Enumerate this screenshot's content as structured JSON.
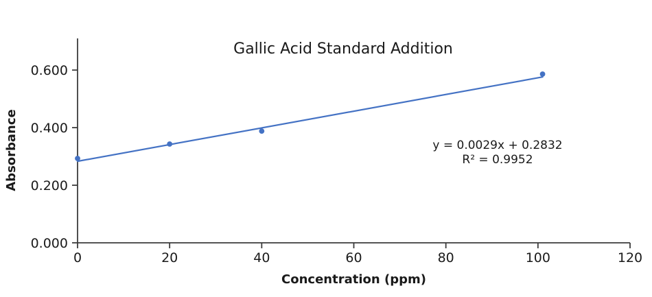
{
  "chart_data": {
    "type": "scatter",
    "title": "Gallic Acid Standard Addition",
    "xlabel": "Concentration (ppm)",
    "ylabel": "Absorbance",
    "x": [
      0,
      20,
      40,
      101
    ],
    "y": [
      0.293,
      0.343,
      0.388,
      0.586
    ],
    "xlim": [
      0,
      120
    ],
    "ylim": [
      0,
      0.71
    ],
    "x_ticks": [
      0,
      20,
      40,
      60,
      80,
      100,
      120
    ],
    "x_tick_labels": [
      "0",
      "20",
      "40",
      "60",
      "80",
      "100",
      "120"
    ],
    "y_ticks": [
      0,
      0.2,
      0.4,
      0.6
    ],
    "y_tick_labels": [
      "0.000",
      "0.200",
      "0.400",
      "0.600"
    ],
    "grid": false,
    "legend": "none",
    "trendline": {
      "slope": 0.0029,
      "intercept": 0.2832,
      "x_start": 0,
      "x_end": 101
    },
    "annotation": {
      "line1": "y = 0.0029x + 0.2832",
      "line2": "R² = 0.9952"
    },
    "colors": {
      "series": "#4472C4",
      "axis": "#3b3b3b",
      "text": "#1a1a1a",
      "background": "#ffffff"
    }
  }
}
